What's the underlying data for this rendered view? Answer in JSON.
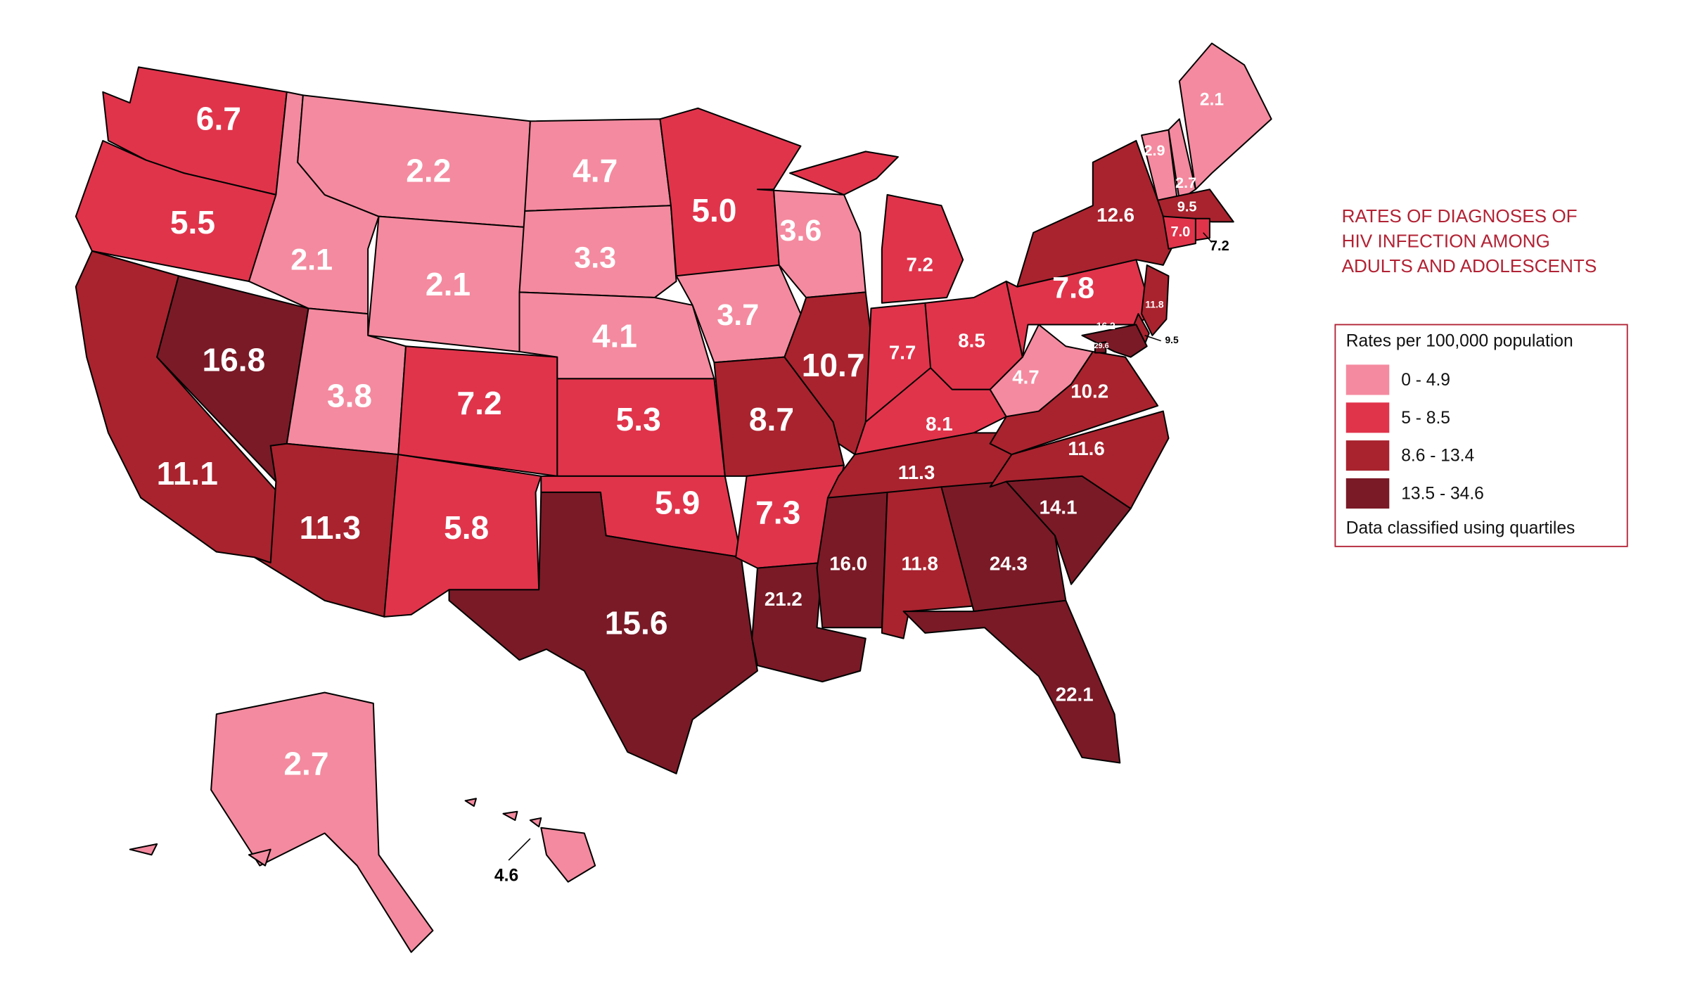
{
  "chart_data": {
    "type": "choropleth",
    "title": [
      "RATES OF DIAGNOSES OF",
      "HIV INFECTION AMONG",
      "ADULTS AND ADOLESCENTS"
    ],
    "legend": {
      "title": "Rates per 100,000 population",
      "note": "Data classified using quartiles",
      "classes": [
        {
          "label": "0 - 4.9",
          "min": 0,
          "max": 4.9,
          "color": "#f48a9f"
        },
        {
          "label": "5 - 8.5",
          "min": 5,
          "max": 8.5,
          "color": "#e0344b"
        },
        {
          "label": "8.6 - 13.4",
          "min": 8.6,
          "max": 13.4,
          "color": "#a8232e"
        },
        {
          "label": "13.5 - 34.6",
          "min": 13.5,
          "max": 34.6,
          "color": "#7a1a27"
        }
      ]
    },
    "values": [
      6.7,
      5.5,
      11.1,
      16.8,
      2.1,
      2.2,
      2.1,
      3.8,
      7.2,
      11.3,
      5.8,
      4.7,
      3.3,
      4.1,
      5.3,
      5.9,
      15.6,
      5.0,
      3.7,
      8.7,
      7.3,
      21.2,
      3.6,
      10.7,
      7.2,
      7.7,
      8.5,
      8.1,
      11.3,
      16.0,
      11.8,
      24.3,
      22.1,
      14.1,
      11.6,
      10.2,
      4.7,
      7.8,
      12.6,
      2.1,
      2.7,
      2.9,
      9.5,
      7.0,
      7.2,
      11.8,
      9.5,
      16.2,
      29.6,
      2.7,
      4.6
    ],
    "value_labels": [
      "6.7",
      "5.5",
      "11.1",
      "16.8",
      "2.1",
      "2.2",
      "2.1",
      "3.8",
      "7.2",
      "11.3",
      "5.8",
      "4.7",
      "3.3",
      "4.1",
      "5.3",
      "5.9",
      "15.6",
      "5.0",
      "3.7",
      "8.7",
      "7.3",
      "21.2",
      "3.6",
      "10.7",
      "7.2",
      "7.7",
      "8.5",
      "8.1",
      "11.3",
      "16.0",
      "11.8",
      "24.3",
      "22.1",
      "14.1",
      "11.6",
      "10.2",
      "4.7",
      "7.8",
      "12.6",
      "2.1",
      "2.7",
      "2.9",
      "9.5",
      "7.0",
      "7.2",
      "11.8",
      "9.5",
      "16.2",
      "29.6",
      "2.7",
      "4.6"
    ]
  }
}
